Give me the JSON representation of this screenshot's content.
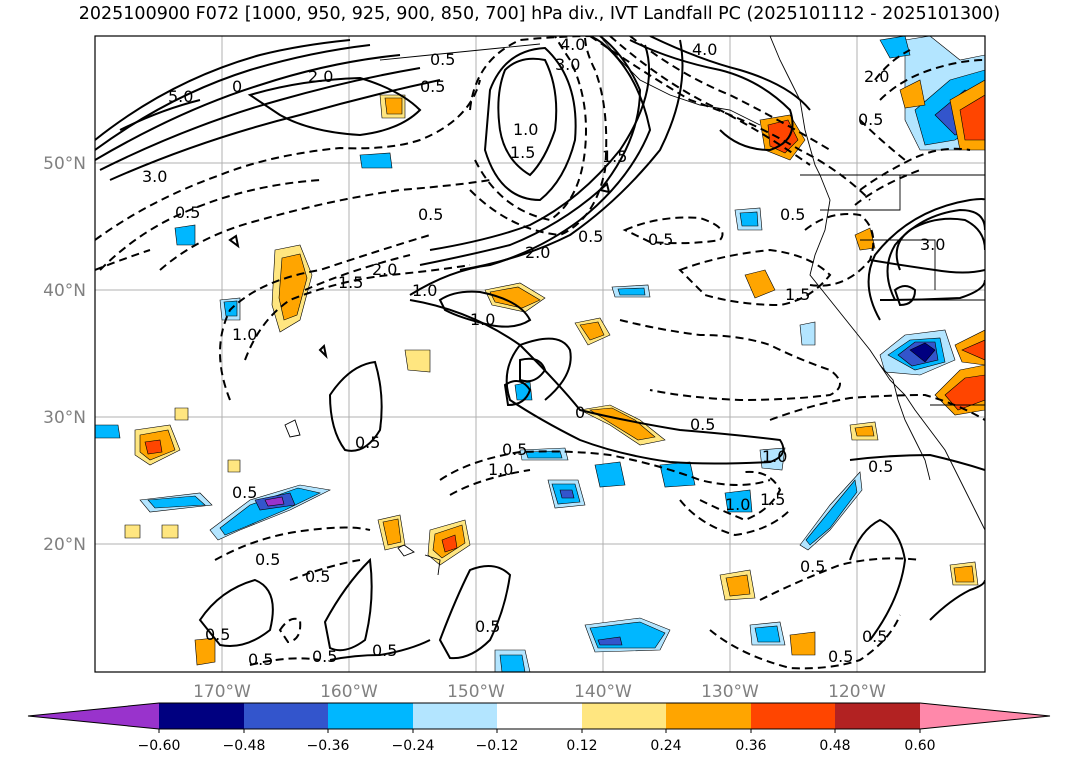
{
  "title": "2025100900 F072 [1000, 950, 925, 900, 850, 700] hPa div., IVT Landfall PC (2025101112 - 2025101300)",
  "lat_labels": [
    "50°N",
    "40°N",
    "30°N",
    "20°N"
  ],
  "lon_labels": [
    "170°W",
    "160°W",
    "150°W",
    "140°W",
    "130°W",
    "120°W"
  ],
  "colorbar": {
    "ticks": [
      "−0.60",
      "−0.48",
      "−0.36",
      "−0.24",
      "−0.12",
      "0.12",
      "0.24",
      "0.36",
      "0.48",
      "0.60"
    ],
    "colors": [
      "#9933cc",
      "#000080",
      "#3355cc",
      "#00b7ff",
      "#b3e5ff",
      "#ffffff",
      "#ffe680",
      "#ffa500",
      "#ff4500",
      "#b22222",
      "#ff88aa"
    ]
  },
  "contour_labels": [
    "4.0",
    "3.0",
    "4.0",
    "2.0",
    "5.0",
    "0",
    "0.5",
    "0.5",
    "1.0",
    "1.5",
    "2.0",
    "0.5",
    "1.5",
    "0.5",
    "0.5",
    "2.0",
    "0.5",
    "0.5",
    "3.0",
    "1.5",
    "2.0",
    "1.0",
    "1.0",
    "1.0",
    "1.5",
    "0.5",
    "0.5",
    "0.5",
    "1.0",
    "0.5",
    "0.5",
    "0.5",
    "0.5",
    "0.5",
    "0.5",
    "0.5",
    "0.5",
    "0.5",
    "0.5",
    "0.5",
    "0.5",
    "0.5",
    "3.0",
    "1.5",
    "1.0",
    "1.0",
    "0"
  ]
}
